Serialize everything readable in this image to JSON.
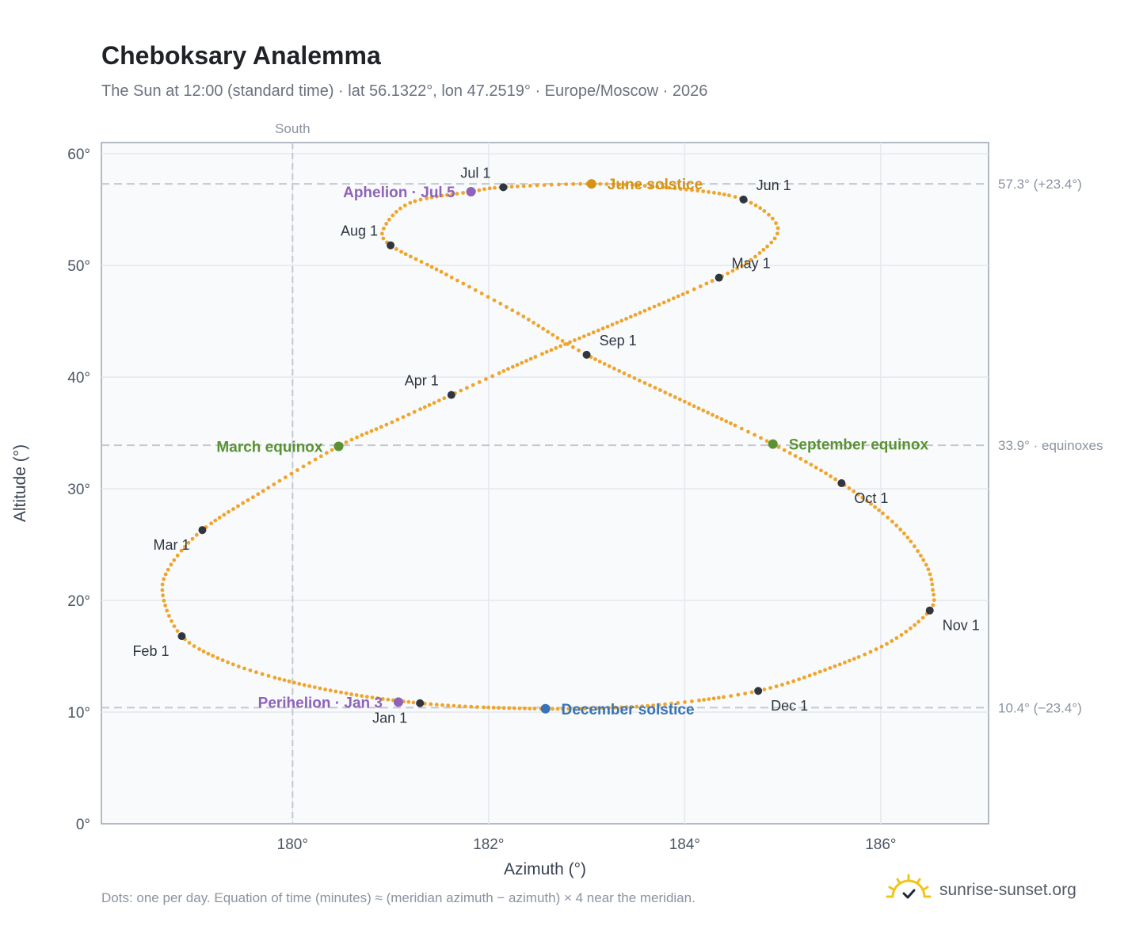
{
  "title": "Cheboksary Analemma",
  "subtitle": "The Sun at 12:00 (standard time) · lat 56.1322°, lon 47.2519° · Europe/Moscow · 2026",
  "footnote": "Dots: one per day. Equation of time (minutes) ≈ (meridian azimuth − azimuth) × 4 near the meridian.",
  "brand": {
    "name": "sunrise-sunset.org",
    "icon": "sun-icon"
  },
  "colors": {
    "path": "#f0a52a",
    "month": "#2f3640",
    "aphelion": "#8e63b8",
    "perihelion": "#8e63b8",
    "june_solstice": "#d49314",
    "december_solstice": "#3874b5",
    "equinox": "#5a9232",
    "reference": "#c4c9d1",
    "plot_bg": "#f8fafc",
    "grid": "#e5e8ee"
  },
  "chart_data": {
    "type": "scatter",
    "xlabel": "Azimuth (°)",
    "ylabel": "Altitude (°)",
    "xlim": [
      178.05,
      187.1
    ],
    "ylim": [
      0,
      61
    ],
    "xticks": [
      {
        "value": 180,
        "label": "180°"
      },
      {
        "value": 182,
        "label": "182°"
      },
      {
        "value": 184,
        "label": "184°"
      },
      {
        "value": 186,
        "label": "186°"
      }
    ],
    "yticks": [
      {
        "value": 0,
        "label": "0°"
      },
      {
        "value": 10,
        "label": "10°"
      },
      {
        "value": 20,
        "label": "20°"
      },
      {
        "value": 30,
        "label": "30°"
      },
      {
        "value": 40,
        "label": "40°"
      },
      {
        "value": 50,
        "label": "50°"
      },
      {
        "value": 60,
        "label": "60°"
      }
    ],
    "grid": true,
    "meridian": {
      "azimuth": 180,
      "label": "South"
    },
    "reference_lines": [
      {
        "altitude": 57.3,
        "label": "57.3° (+23.4°)"
      },
      {
        "altitude": 33.9,
        "label": "33.9° · equinoxes"
      },
      {
        "altitude": 10.4,
        "label": "10.4° (−23.4°)"
      }
    ],
    "daily_path": [
      {
        "x": 181.3,
        "y": 10.8
      },
      {
        "x": 180.6,
        "y": 11.6
      },
      {
        "x": 179.9,
        "y": 12.9
      },
      {
        "x": 179.3,
        "y": 14.6
      },
      {
        "x": 178.87,
        "y": 16.8
      },
      {
        "x": 178.68,
        "y": 20.3
      },
      {
        "x": 178.74,
        "y": 22.9
      },
      {
        "x": 179.08,
        "y": 26.3
      },
      {
        "x": 179.7,
        "y": 29.8
      },
      {
        "x": 180.47,
        "y": 33.8
      },
      {
        "x": 181.0,
        "y": 35.9
      },
      {
        "x": 181.62,
        "y": 38.4
      },
      {
        "x": 182.5,
        "y": 41.9
      },
      {
        "x": 183.45,
        "y": 45.4
      },
      {
        "x": 184.35,
        "y": 48.9
      },
      {
        "x": 184.75,
        "y": 51.0
      },
      {
        "x": 184.95,
        "y": 53.4
      },
      {
        "x": 184.6,
        "y": 55.9
      },
      {
        "x": 183.9,
        "y": 56.9
      },
      {
        "x": 183.05,
        "y": 57.3
      },
      {
        "x": 182.15,
        "y": 57.0
      },
      {
        "x": 181.82,
        "y": 56.6
      },
      {
        "x": 181.2,
        "y": 55.6
      },
      {
        "x": 180.93,
        "y": 53.3
      },
      {
        "x": 181.0,
        "y": 51.8
      },
      {
        "x": 181.5,
        "y": 49.5
      },
      {
        "x": 182.3,
        "y": 45.7
      },
      {
        "x": 183.0,
        "y": 42.0
      },
      {
        "x": 184.0,
        "y": 37.8
      },
      {
        "x": 184.9,
        "y": 34.0
      },
      {
        "x": 185.6,
        "y": 30.5
      },
      {
        "x": 186.15,
        "y": 26.8
      },
      {
        "x": 186.45,
        "y": 23.4
      },
      {
        "x": 186.53,
        "y": 21.0
      },
      {
        "x": 186.5,
        "y": 19.1
      },
      {
        "x": 186.1,
        "y": 16.3
      },
      {
        "x": 185.5,
        "y": 14.0
      },
      {
        "x": 184.75,
        "y": 11.9
      },
      {
        "x": 183.8,
        "y": 10.7
      },
      {
        "x": 183.1,
        "y": 10.35
      },
      {
        "x": 182.58,
        "y": 10.3
      },
      {
        "x": 181.9,
        "y": 10.45
      },
      {
        "x": 181.3,
        "y": 10.8
      }
    ],
    "month_markers": [
      {
        "label": "Jan 1",
        "x": 181.3,
        "y": 10.8,
        "pos": "below-left"
      },
      {
        "label": "Feb 1",
        "x": 178.87,
        "y": 16.8,
        "pos": "below-left"
      },
      {
        "label": "Mar 1",
        "x": 179.08,
        "y": 26.3,
        "pos": "below-left"
      },
      {
        "label": "Apr 1",
        "x": 181.62,
        "y": 38.4,
        "pos": "above-left"
      },
      {
        "label": "May 1",
        "x": 184.35,
        "y": 48.9,
        "pos": "above-right"
      },
      {
        "label": "Jun 1",
        "x": 184.6,
        "y": 55.9,
        "pos": "above-right"
      },
      {
        "label": "Jul 1",
        "x": 182.15,
        "y": 57.0,
        "pos": "above-left"
      },
      {
        "label": "Aug 1",
        "x": 181.0,
        "y": 51.8,
        "pos": "above-left"
      },
      {
        "label": "Sep 1",
        "x": 183.0,
        "y": 42.0,
        "pos": "above-right"
      },
      {
        "label": "Oct 1",
        "x": 185.6,
        "y": 30.5,
        "pos": "below-right"
      },
      {
        "label": "Nov 1",
        "x": 186.5,
        "y": 19.1,
        "pos": "below-right"
      },
      {
        "label": "Dec 1",
        "x": 184.75,
        "y": 11.9,
        "pos": "below-right"
      }
    ],
    "events": [
      {
        "label": "Aphelion · Jul 5",
        "x": 181.82,
        "y": 56.6,
        "color_key": "aphelion",
        "side": "left"
      },
      {
        "label": "June solstice",
        "x": 183.05,
        "y": 57.3,
        "color_key": "june_solstice",
        "side": "right"
      },
      {
        "label": "March equinox",
        "x": 180.47,
        "y": 33.8,
        "color_key": "equinox",
        "side": "left"
      },
      {
        "label": "September equinox",
        "x": 184.9,
        "y": 34.0,
        "color_key": "equinox",
        "side": "right"
      },
      {
        "label": "Perihelion · Jan 3",
        "x": 181.08,
        "y": 10.9,
        "color_key": "perihelion",
        "side": "left"
      },
      {
        "label": "December solstice",
        "x": 182.58,
        "y": 10.3,
        "color_key": "december_solstice",
        "side": "right"
      }
    ]
  }
}
